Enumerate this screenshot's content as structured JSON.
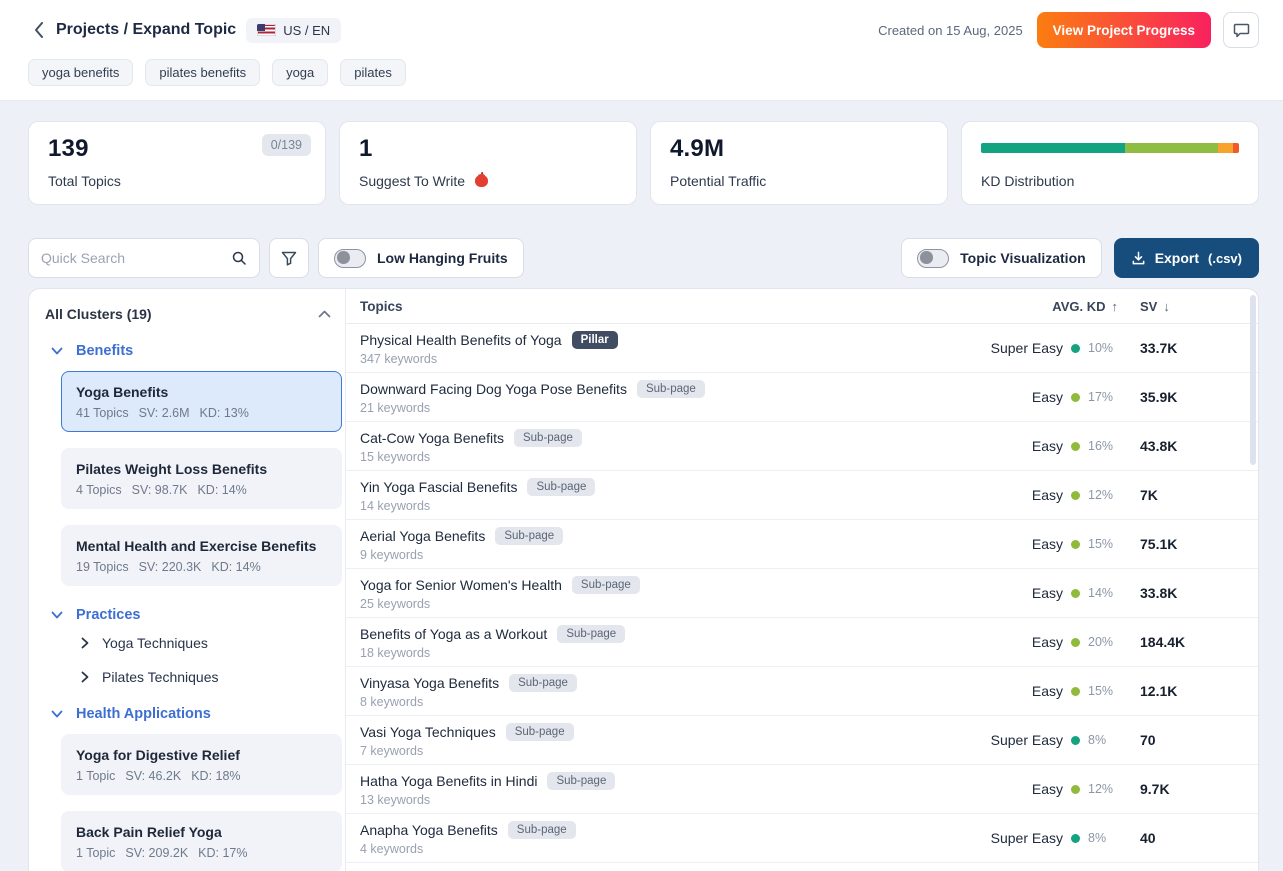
{
  "header": {
    "breadcrumb": "Projects / Expand Topic",
    "locale": "US / EN",
    "created": "Created on 15 Aug, 2025",
    "view_progress_label": "View Project Progress"
  },
  "tags": {
    "0": "yoga benefits",
    "1": "pilates benefits",
    "2": "yoga",
    "3": "pilates"
  },
  "stats": {
    "total_topics": {
      "value": "139",
      "badge": "0/139",
      "label": "Total Topics"
    },
    "suggest": {
      "value": "1",
      "label": "Suggest To Write",
      "icon": "apple-icon"
    },
    "traffic": {
      "value": "4.9M",
      "label": "Potential Traffic"
    },
    "kd": {
      "label": "KD Distribution",
      "segments": [
        {
          "name": "super-easy",
          "color": "#13a380",
          "pct": 56
        },
        {
          "name": "easy",
          "color": "#8fbc42",
          "pct": 36
        },
        {
          "name": "medium",
          "color": "#f8a32b",
          "pct": 5.5
        },
        {
          "name": "hard",
          "color": "#f15b2b",
          "pct": 2.5
        }
      ]
    }
  },
  "controls": {
    "search_placeholder": "Quick Search",
    "low_hanging_fruits": "Low Hanging Fruits",
    "topic_visualization": "Topic Visualization",
    "export_label": "Export",
    "export_ext": "(.csv)"
  },
  "sidebar": {
    "title": "All Clusters (19)",
    "sections": {
      "0": {
        "label": "Benefits",
        "clusters": {
          "0": {
            "title": "Yoga Benefits",
            "topics": "41 Topics",
            "sv": "SV: 2.6M",
            "kd": "KD: 13%"
          },
          "1": {
            "title": "Pilates Weight Loss Benefits",
            "topics": "4 Topics",
            "sv": "SV: 98.7K",
            "kd": "KD: 14%"
          },
          "2": {
            "title": "Mental Health and Exercise Benefits",
            "topics": "19 Topics",
            "sv": "SV: 220.3K",
            "kd": "KD: 14%"
          }
        }
      },
      "1": {
        "label": "Practices",
        "items": {
          "0": "Yoga Techniques",
          "1": "Pilates Techniques"
        }
      },
      "2": {
        "label": "Health Applications",
        "clusters": {
          "0": {
            "title": "Yoga for Digestive Relief",
            "topics": "1 Topic",
            "sv": "SV: 46.2K",
            "kd": "KD: 18%"
          },
          "1": {
            "title": "Back Pain Relief Yoga",
            "topics": "1 Topic",
            "sv": "SV: 209.2K",
            "kd": "KD: 17%"
          }
        }
      }
    }
  },
  "table": {
    "columns": {
      "topics": "Topics",
      "avg_kd": "AVG. KD",
      "sv": "SV"
    },
    "sort": {
      "avg_kd": "↑",
      "sv": "↓"
    },
    "rows": {
      "0": {
        "title": "Physical Health Benefits of Yoga",
        "badge": "Pillar",
        "keywords": "347 keywords",
        "difficulty": "Super Easy",
        "kd": "10%",
        "sv": "33.7K"
      },
      "1": {
        "title": "Downward Facing Dog Yoga Pose Benefits",
        "badge": "Sub-page",
        "keywords": "21 keywords",
        "difficulty": "Easy",
        "kd": "17%",
        "sv": "35.9K"
      },
      "2": {
        "title": "Cat-Cow Yoga Benefits",
        "badge": "Sub-page",
        "keywords": "15 keywords",
        "difficulty": "Easy",
        "kd": "16%",
        "sv": "43.8K"
      },
      "3": {
        "title": "Yin Yoga Fascial Benefits",
        "badge": "Sub-page",
        "keywords": "14 keywords",
        "difficulty": "Easy",
        "kd": "12%",
        "sv": "7K"
      },
      "4": {
        "title": "Aerial Yoga Benefits",
        "badge": "Sub-page",
        "keywords": "9 keywords",
        "difficulty": "Easy",
        "kd": "15%",
        "sv": "75.1K"
      },
      "5": {
        "title": "Yoga for Senior Women's Health",
        "badge": "Sub-page",
        "keywords": "25 keywords",
        "difficulty": "Easy",
        "kd": "14%",
        "sv": "33.8K"
      },
      "6": {
        "title": "Benefits of Yoga as a Workout",
        "badge": "Sub-page",
        "keywords": "18 keywords",
        "difficulty": "Easy",
        "kd": "20%",
        "sv": "184.4K"
      },
      "7": {
        "title": "Vinyasa Yoga Benefits",
        "badge": "Sub-page",
        "keywords": "8 keywords",
        "difficulty": "Easy",
        "kd": "15%",
        "sv": "12.1K"
      },
      "8": {
        "title": "Vasi Yoga Techniques",
        "badge": "Sub-page",
        "keywords": "7 keywords",
        "difficulty": "Super Easy",
        "kd": "8%",
        "sv": "70"
      },
      "9": {
        "title": "Hatha Yoga Benefits in Hindi",
        "badge": "Sub-page",
        "keywords": "13 keywords",
        "difficulty": "Easy",
        "kd": "12%",
        "sv": "9.7K"
      },
      "10": {
        "title": "Anapha Yoga Benefits",
        "badge": "Sub-page",
        "keywords": "4 keywords",
        "difficulty": "Super Easy",
        "kd": "8%",
        "sv": "40"
      }
    }
  },
  "colors": {
    "super_easy_dot": "#13a380",
    "easy_dot": "#8fba3c",
    "accent_blue": "#3d6fd2",
    "selected_cluster_bg": "#ddeafb",
    "export_button": "#174d7d",
    "progress_button_gradient": [
      "#fb7d10",
      "#f9215f"
    ],
    "pillar_badge": "#414d63"
  }
}
